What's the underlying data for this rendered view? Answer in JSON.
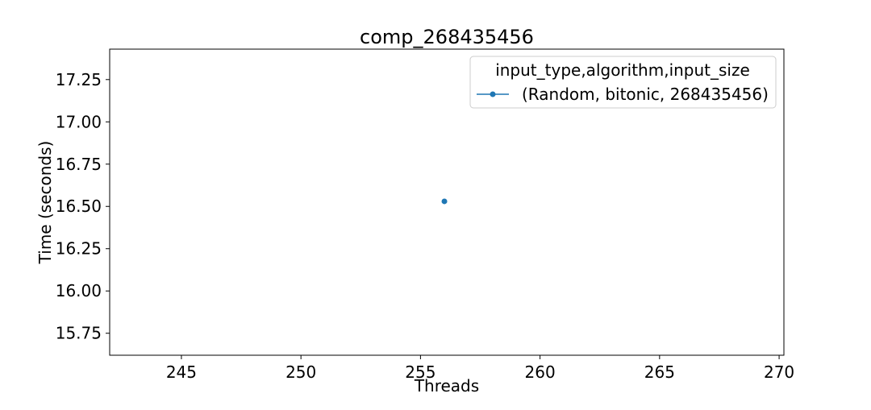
{
  "chart_data": {
    "type": "line",
    "title": "comp_268435456",
    "xlabel": "Threads",
    "ylabel": "Time (seconds)",
    "xlim": [
      242,
      270.2
    ],
    "ylim": [
      15.62,
      17.43
    ],
    "xticks": [
      245,
      250,
      255,
      260,
      265,
      270
    ],
    "yticks": [
      15.75,
      16.0,
      16.25,
      16.5,
      16.75,
      17.0,
      17.25
    ],
    "xtick_labels": [
      "245",
      "250",
      "255",
      "260",
      "265",
      "270"
    ],
    "ytick_labels": [
      "15.75",
      "16.00",
      "16.25",
      "16.50",
      "16.75",
      "17.00",
      "17.25"
    ],
    "grid": false,
    "legend": {
      "title": "input_type,algorithm,input_size",
      "position": "upper right"
    },
    "series": [
      {
        "name": "(Random, bitonic, 268435456)",
        "color": "#1f77b4",
        "marker": "circle",
        "points": [
          {
            "x": 256,
            "y": 16.53
          }
        ]
      }
    ]
  }
}
